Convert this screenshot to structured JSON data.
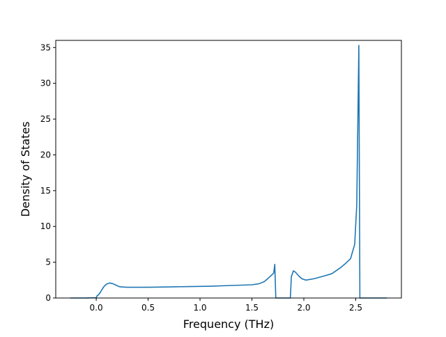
{
  "chart_data": {
    "type": "line",
    "title": "",
    "xlabel": "Frequency (THz)",
    "ylabel": "Density of States",
    "xlim": [
      -0.39,
      2.94
    ],
    "ylim": [
      0,
      36
    ],
    "grid": false,
    "legend": "none",
    "x_ticks": [
      0.0,
      0.5,
      1.0,
      1.5,
      2.0,
      2.5
    ],
    "x_tick_labels": [
      "0.0",
      "0.5",
      "1.0",
      "1.5",
      "2.0",
      "2.5"
    ],
    "y_ticks": [
      0,
      5,
      10,
      15,
      20,
      25,
      30,
      35
    ],
    "y_tick_labels": [
      "0",
      "5",
      "10",
      "15",
      "20",
      "25",
      "30",
      "35"
    ],
    "series": [
      {
        "name": "",
        "color": "#1f77b4",
        "x": [
          -0.25,
          -0.1,
          0.0,
          0.01,
          0.02,
          0.04,
          0.06,
          0.08,
          0.1,
          0.13,
          0.16,
          0.19,
          0.22,
          0.24,
          0.3,
          0.5,
          0.7,
          0.9,
          1.1,
          1.3,
          1.5,
          1.57,
          1.62,
          1.66,
          1.69,
          1.71,
          1.72,
          1.73,
          1.74,
          1.87,
          1.88,
          1.9,
          1.92,
          1.95,
          1.98,
          2.02,
          2.1,
          2.2,
          2.27,
          2.3,
          2.35,
          2.4,
          2.45,
          2.49,
          2.51,
          2.53,
          2.54,
          2.56,
          2.8
        ],
        "y": [
          0,
          0,
          0.05,
          0.35,
          0.4,
          0.8,
          1.3,
          1.7,
          1.95,
          2.1,
          2.0,
          1.8,
          1.6,
          1.55,
          1.5,
          1.5,
          1.55,
          1.6,
          1.65,
          1.75,
          1.85,
          2.0,
          2.3,
          2.8,
          3.2,
          3.5,
          4.7,
          0,
          0,
          0,
          3.0,
          3.8,
          3.6,
          3.1,
          2.7,
          2.5,
          2.7,
          3.1,
          3.4,
          3.7,
          4.2,
          4.8,
          5.5,
          7.5,
          13.0,
          35.3,
          0,
          0,
          0
        ]
      }
    ]
  }
}
